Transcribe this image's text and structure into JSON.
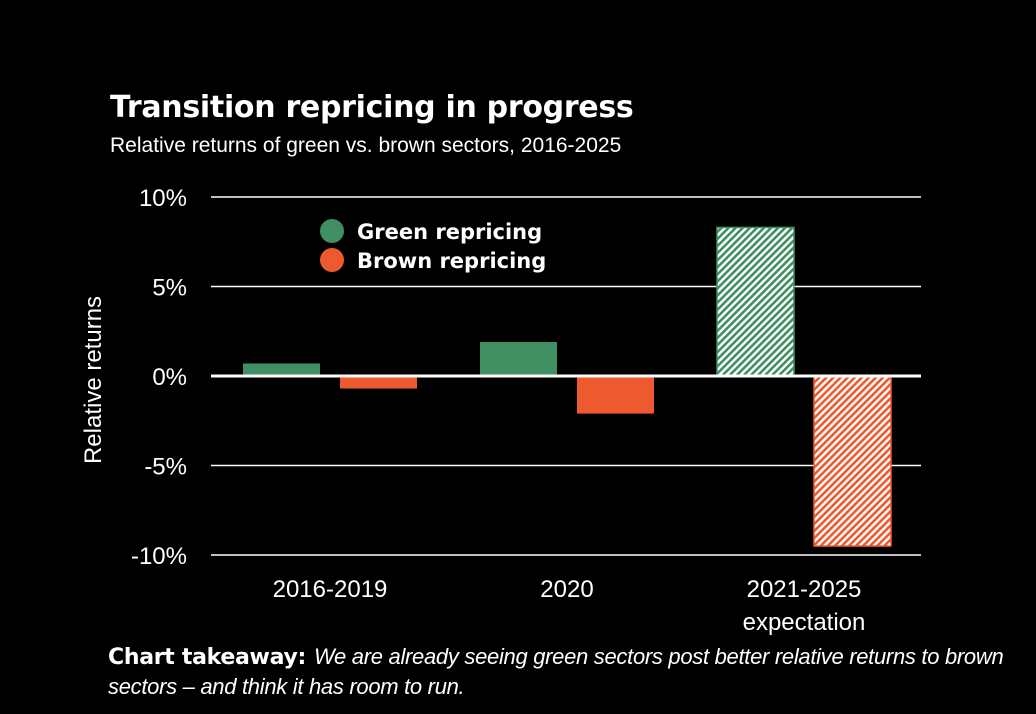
{
  "chart_data": {
    "type": "bar",
    "title": "Transition repricing in progress",
    "subtitle": "Relative returns of green vs. brown sectors, 2016-2025",
    "ylabel": "Relative returns",
    "ylim": [
      -10,
      10
    ],
    "yticks": [
      10,
      5,
      0,
      -5,
      -10
    ],
    "ytick_labels": [
      "10%",
      "5%",
      "0%",
      "-5%",
      "-10%"
    ],
    "categories": [
      {
        "line1": "2016-2019",
        "line2": ""
      },
      {
        "line1": "2020",
        "line2": ""
      },
      {
        "line1": "2021-2025",
        "line2": "expectation"
      }
    ],
    "series": [
      {
        "name": "Green repricing",
        "color": "#3f8f62",
        "values": [
          0.7,
          1.9,
          8.3
        ]
      },
      {
        "name": "Brown repricing",
        "color": "#ee5a30",
        "values": [
          -0.7,
          -2.1,
          -9.5
        ]
      }
    ],
    "hatched_category_index": 2,
    "legend_placement": "top-left",
    "grid": true
  },
  "takeaway": {
    "label": "Chart takeaway:",
    "text": "We are already seeing green sectors post better relative returns to brown sectors – and think it has room to run."
  }
}
